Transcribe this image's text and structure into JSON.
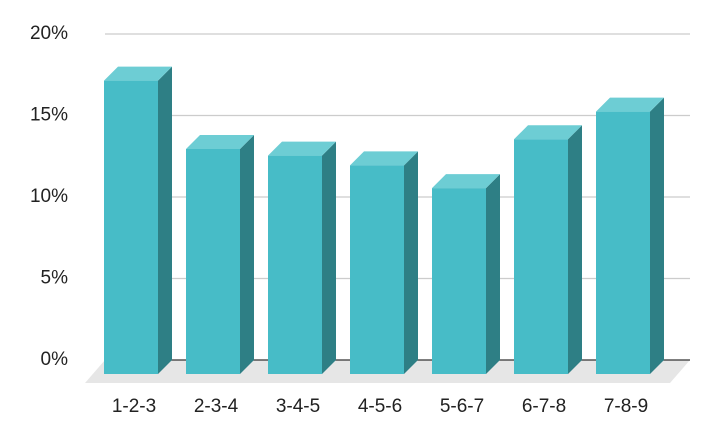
{
  "chart_data": {
    "type": "bar3d",
    "categories": [
      "1-2-3",
      "2-3-4",
      "3-4-5",
      "4-5-6",
      "5-6-7",
      "6-7-8",
      "7-8-9"
    ],
    "values": [
      18.0,
      13.8,
      13.4,
      12.8,
      11.4,
      14.4,
      16.1
    ],
    "color": "#47bcc7",
    "ylim": [
      0,
      20
    ],
    "yticks": [
      {
        "value": 0,
        "label": "0%"
      },
      {
        "value": 5,
        "label": "5%"
      },
      {
        "value": 10,
        "label": "10%"
      },
      {
        "value": 15,
        "label": "15%"
      },
      {
        "value": 20,
        "label": "20%"
      }
    ],
    "grid": true
  }
}
